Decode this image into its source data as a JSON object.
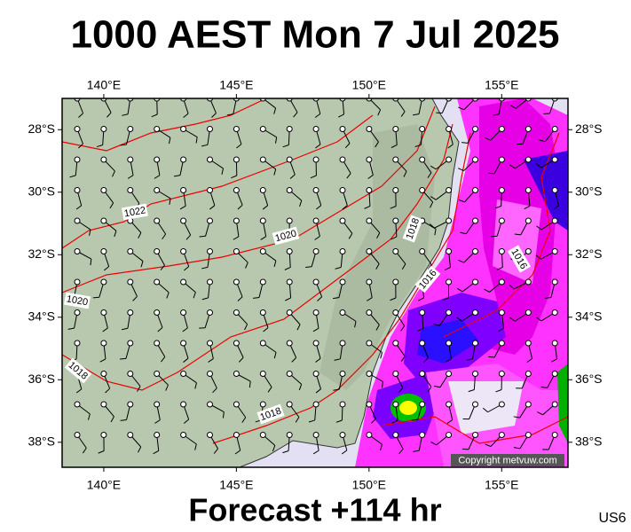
{
  "header": {
    "title": "1000 AEST Mon 7 Jul 2025"
  },
  "map": {
    "lonlim": [
      138.43,
      157.5
    ],
    "latlim": [
      -27.0,
      -38.8
    ],
    "lon_ticks": [
      {
        "value": 140,
        "label": "140°E"
      },
      {
        "value": 145,
        "label": "145°E"
      },
      {
        "value": 150,
        "label": "150°E"
      },
      {
        "value": 155,
        "label": "155°E"
      }
    ],
    "lat_ticks": [
      {
        "value": -28,
        "label": "28°S"
      },
      {
        "value": -30,
        "label": "30°S"
      },
      {
        "value": -32,
        "label": "32°S"
      },
      {
        "value": -34,
        "label": "34°S"
      },
      {
        "value": -36,
        "label": "36°S"
      },
      {
        "value": -38,
        "label": "38°S"
      }
    ],
    "isobar_labels": [
      "1022",
      "1020",
      "1020",
      "1018",
      "1018",
      "1016",
      "1016",
      "1018"
    ],
    "copyright": "Copyright metvuw.com"
  },
  "footer": {
    "forecast": "Forecast +114 hr",
    "region": "US6"
  }
}
